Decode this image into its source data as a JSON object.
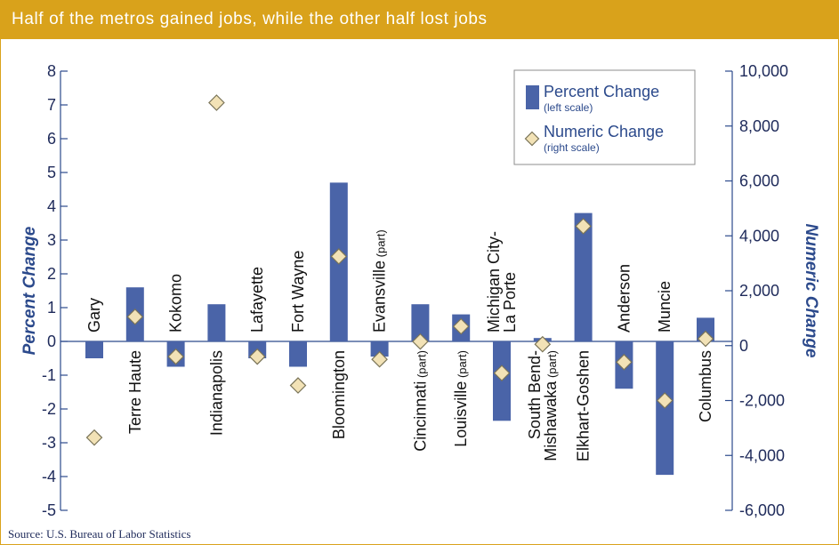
{
  "title": "Half of the metros gained jobs, while the other half lost jobs",
  "source": "Source: U.S. Bureau of Labor Statistics",
  "colors": {
    "bar": "#4a64a8",
    "marker_fill": "#f2e2b6",
    "marker_stroke": "#7a7458",
    "axis": "#2c4a8c",
    "title_bg": "#d9a21b",
    "text": "#1e2a5a"
  },
  "legend": {
    "percent_label": "Percent Change",
    "percent_sub": "(left scale)",
    "numeric_label": "Numeric Change",
    "numeric_sub": "(right scale)"
  },
  "chart_data": {
    "type": "bar",
    "ylabel": "Percent Change",
    "y2label": "Numeric Change",
    "ylim": [
      -5,
      8
    ],
    "y2lim": [
      -6000,
      10000
    ],
    "yticks": [
      "-5",
      "-4",
      "-3",
      "-2",
      "-1",
      "0",
      "1",
      "2",
      "3",
      "4",
      "5",
      "6",
      "7",
      "8"
    ],
    "y2ticks": [
      "-6,000",
      "-4,000",
      "-2,000",
      "0",
      "2,000",
      "4,000",
      "6,000",
      "8,000",
      "10,000"
    ],
    "legend_position": "top-right",
    "categories": [
      {
        "name": "Gary",
        "suffix": ""
      },
      {
        "name": "Terre Haute",
        "suffix": ""
      },
      {
        "name": "Kokomo",
        "suffix": ""
      },
      {
        "name": "Indianapolis",
        "suffix": ""
      },
      {
        "name": "Lafayette",
        "suffix": ""
      },
      {
        "name": "Fort Wayne",
        "suffix": ""
      },
      {
        "name": "Bloomington",
        "suffix": ""
      },
      {
        "name": "Evansville",
        "suffix": "(part)"
      },
      {
        "name": "Cincinnati",
        "suffix": "(part)"
      },
      {
        "name": "Louisville",
        "suffix": "(part)"
      },
      {
        "name": "Michigan City-\nLa Porte",
        "suffix": ""
      },
      {
        "name": "South Bend-\nMishawaka",
        "suffix": "(part)"
      },
      {
        "name": "Elkhart-Goshen",
        "suffix": ""
      },
      {
        "name": "Anderson",
        "suffix": ""
      },
      {
        "name": "Muncie",
        "suffix": ""
      },
      {
        "name": "Columbus",
        "suffix": ""
      }
    ],
    "series": [
      {
        "name": "Percent Change",
        "axis": "left",
        "values": [
          -0.5,
          1.6,
          -0.75,
          1.1,
          -0.5,
          -0.75,
          4.7,
          -0.45,
          1.1,
          0.8,
          -2.35,
          0.1,
          3.8,
          -1.4,
          -3.95,
          0.7
        ]
      },
      {
        "name": "Numeric Change",
        "axis": "right",
        "values": [
          -3350,
          1050,
          -400,
          8850,
          -400,
          -1450,
          3250,
          -500,
          150,
          700,
          -1000,
          50,
          4350,
          -600,
          -2000,
          250
        ]
      }
    ]
  }
}
